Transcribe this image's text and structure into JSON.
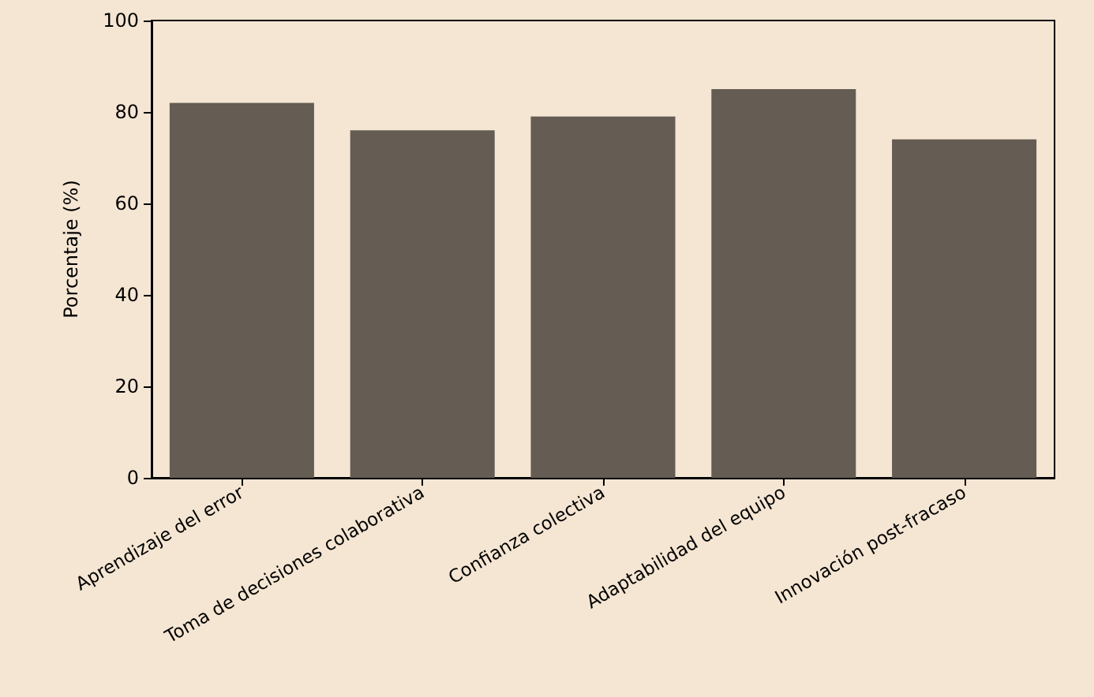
{
  "chart_data": {
    "type": "bar",
    "ylabel": "Porcentaje (%)",
    "categories": [
      "Aprendizaje del error",
      "Toma de decisiones colaborativa",
      "Confianza colectiva",
      "Adaptabilidad del equipo",
      "Innovación post-fracaso"
    ],
    "values": [
      82,
      76,
      79,
      85,
      74
    ],
    "color": "#655c54",
    "ylim": [
      0,
      100
    ],
    "yticks": [
      0,
      20,
      40,
      60,
      80,
      100
    ],
    "grid": false
  }
}
